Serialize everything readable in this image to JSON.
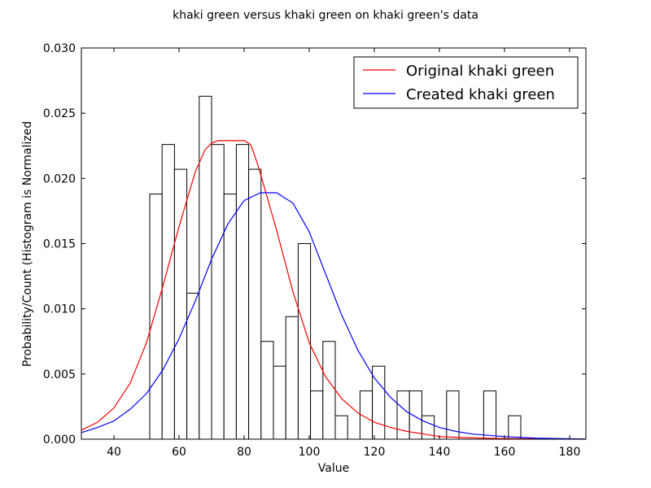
{
  "chart_data": {
    "type": "bar",
    "title": "khaki green versus khaki green on khaki green's data",
    "xlabel": "Value",
    "ylabel": "Probability/Count (Histogram is Normalized",
    "xlim": [
      30,
      185
    ],
    "ylim": [
      0,
      0.03
    ],
    "xticks": [
      "40",
      "60",
      "80",
      "100",
      "120",
      "140",
      "160",
      "180"
    ],
    "yticks": [
      "0.000",
      "0.005",
      "0.010",
      "0.015",
      "0.020",
      "0.025",
      "0.030"
    ],
    "grid": false,
    "legend_position": "top-right",
    "histogram": {
      "name": "Histogram",
      "color": "#000000",
      "bin_edges": [
        51.0,
        54.8,
        58.6,
        62.4,
        66.2,
        70.0,
        73.8,
        77.6,
        81.4,
        85.2,
        89.0,
        92.8,
        96.6,
        100.4,
        104.2,
        108.0,
        111.8,
        115.6,
        119.4,
        123.2,
        127.0,
        130.8,
        134.6,
        138.4,
        142.2,
        146.0,
        149.8,
        153.6,
        157.4,
        161.2,
        165.0
      ],
      "values": [
        0.0188,
        0.0226,
        0.0207,
        0.0112,
        0.0263,
        0.0226,
        0.0188,
        0.0226,
        0.0207,
        0.0075,
        0.0056,
        0.0094,
        0.015,
        0.0037,
        0.0075,
        0.0018,
        0.0,
        0.0037,
        0.0056,
        0.0,
        0.0037,
        0.0037,
        0.0018,
        0.0,
        0.0037,
        0.0,
        0.0,
        0.0037,
        0.0,
        0.0018
      ]
    },
    "series": [
      {
        "name": "Original khaki green",
        "color": "#ff0000",
        "x": [
          30,
          35,
          40,
          45,
          50,
          55,
          60,
          65,
          68,
          70,
          72,
          74,
          76,
          78,
          80,
          82,
          84,
          86,
          90,
          95,
          100,
          105,
          110,
          115,
          120,
          125,
          130,
          135,
          140,
          150,
          160,
          170,
          185
        ],
        "y": [
          0.0007,
          0.0013,
          0.0024,
          0.0043,
          0.0074,
          0.0117,
          0.0163,
          0.0205,
          0.0222,
          0.0227,
          0.0229,
          0.0229,
          0.0229,
          0.0229,
          0.0229,
          0.0226,
          0.0212,
          0.0195,
          0.016,
          0.0113,
          0.0074,
          0.0048,
          0.0031,
          0.002,
          0.0013,
          0.0009,
          0.0006,
          0.0004,
          0.0002,
          0.0001,
          5e-05,
          2e-05,
          0.0
        ]
      },
      {
        "name": "Created khaki green",
        "color": "#0000ff",
        "x": [
          30,
          35,
          40,
          45,
          50,
          55,
          60,
          65,
          70,
          75,
          80,
          85,
          90,
          95,
          100,
          105,
          110,
          115,
          120,
          125,
          130,
          135,
          140,
          145,
          150,
          160,
          170,
          180,
          185
        ],
        "y": [
          0.0005,
          0.0009,
          0.0014,
          0.0023,
          0.0035,
          0.0053,
          0.0077,
          0.0106,
          0.0138,
          0.0165,
          0.0183,
          0.0189,
          0.0189,
          0.0181,
          0.0159,
          0.0127,
          0.0095,
          0.0068,
          0.0047,
          0.0032,
          0.0021,
          0.0014,
          0.0009,
          0.0006,
          0.0004,
          0.0002,
          8e-05,
          3e-05,
          1e-05
        ]
      }
    ]
  }
}
